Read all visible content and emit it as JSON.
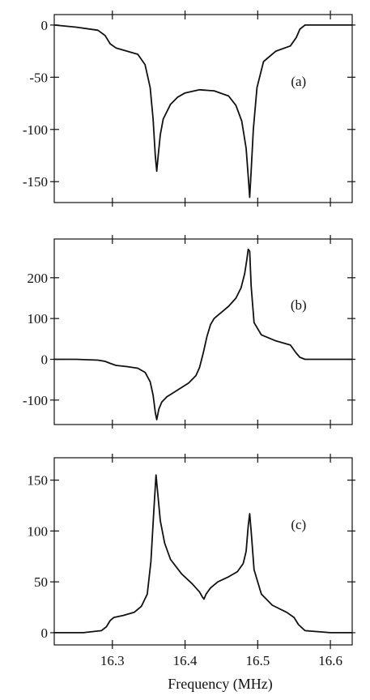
{
  "chart_data": [
    {
      "type": "line",
      "panel_label": "(a)",
      "xlim": [
        16.22,
        16.63
      ],
      "ylim": [
        -170,
        10
      ],
      "yticks": [
        0,
        -50,
        -100,
        -150
      ],
      "series": [
        {
          "x": [
            16.22,
            16.25,
            16.28,
            16.29,
            16.297,
            16.305,
            16.32,
            16.335,
            16.345,
            16.352,
            16.356,
            16.359,
            16.361,
            16.363,
            16.366,
            16.37,
            16.38,
            16.39,
            16.4,
            16.42,
            16.44,
            16.46,
            16.47,
            16.478,
            16.484,
            16.487,
            16.489,
            16.491,
            16.494,
            16.499,
            16.508,
            16.525,
            16.545,
            16.553,
            16.558,
            16.565,
            16.6,
            16.63
          ],
          "y": [
            0,
            -2,
            -5,
            -10,
            -18,
            -22,
            -25,
            -28,
            -38,
            -60,
            -90,
            -125,
            -140,
            -125,
            -105,
            -90,
            -76,
            -69,
            -65,
            -62,
            -63,
            -68,
            -77,
            -92,
            -118,
            -145,
            -165,
            -140,
            -100,
            -60,
            -35,
            -25,
            -20,
            -12,
            -4,
            0,
            0,
            0
          ],
          "color": "#111111"
        }
      ]
    },
    {
      "type": "line",
      "panel_label": "(b)",
      "xlim": [
        16.22,
        16.63
      ],
      "ylim": [
        -160,
        295
      ],
      "yticks": [
        200,
        100,
        0,
        -100
      ],
      "series": [
        {
          "x": [
            16.22,
            16.25,
            16.28,
            16.29,
            16.297,
            16.305,
            16.32,
            16.335,
            16.345,
            16.352,
            16.356,
            16.359,
            16.361,
            16.364,
            16.368,
            16.375,
            16.39,
            16.405,
            16.415,
            16.42,
            16.425,
            16.43,
            16.435,
            16.44,
            16.45,
            16.46,
            16.47,
            16.477,
            16.482,
            16.485,
            16.487,
            16.489,
            16.491,
            16.495,
            16.505,
            16.525,
            16.545,
            16.553,
            16.558,
            16.565,
            16.6,
            16.63
          ],
          "y": [
            0,
            0,
            -2,
            -5,
            -10,
            -15,
            -18,
            -22,
            -32,
            -55,
            -88,
            -130,
            -148,
            -122,
            -105,
            -92,
            -75,
            -58,
            -40,
            -20,
            15,
            55,
            85,
            100,
            115,
            130,
            150,
            175,
            210,
            245,
            270,
            265,
            180,
            90,
            60,
            45,
            35,
            15,
            5,
            0,
            0,
            0
          ],
          "color": "#111111"
        }
      ]
    },
    {
      "type": "line",
      "panel_label": "(c)",
      "xlim": [
        16.22,
        16.63
      ],
      "ylim": [
        -12,
        172
      ],
      "yticks": [
        150,
        100,
        50,
        0
      ],
      "series": [
        {
          "x": [
            16.22,
            16.26,
            16.285,
            16.292,
            16.297,
            16.302,
            16.315,
            16.33,
            16.34,
            16.348,
            16.353,
            16.357,
            16.36,
            16.362,
            16.366,
            16.372,
            16.38,
            16.395,
            16.41,
            16.42,
            16.424,
            16.426,
            16.429,
            16.435,
            16.445,
            16.46,
            16.472,
            16.48,
            16.484,
            16.487,
            16.489,
            16.491,
            16.495,
            16.505,
            16.52,
            16.54,
            16.55,
            16.556,
            16.565,
            16.6,
            16.63
          ],
          "y": [
            0,
            0,
            2,
            6,
            12,
            15,
            17,
            20,
            26,
            38,
            70,
            120,
            155,
            140,
            110,
            88,
            72,
            58,
            48,
            40,
            35,
            33,
            38,
            44,
            50,
            55,
            60,
            68,
            80,
            105,
            117,
            100,
            62,
            38,
            27,
            20,
            15,
            8,
            2,
            0,
            0
          ],
          "color": "#111111"
        }
      ]
    }
  ],
  "xaxis": {
    "ticks": [
      "16.3",
      "16.4",
      "16.5",
      "16.6"
    ],
    "label": "Frequency (MHz)"
  }
}
